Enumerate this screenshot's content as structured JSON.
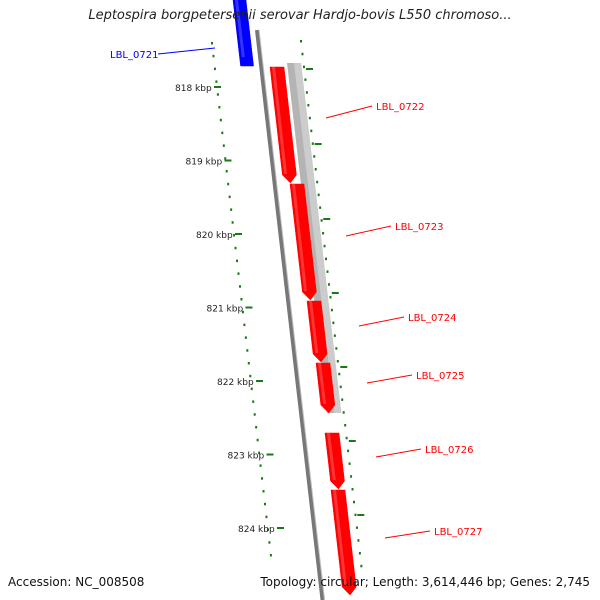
{
  "title": "Leptospira borgpetersenii serovar Hardjo-bovis L550 chromoso...",
  "footer": {
    "accession": "Accession: NC_008508",
    "summary": "Topology: circular; Length: 3,614,446 bp; Genes: 2,745"
  },
  "colors": {
    "forward_gene": "#0000ff",
    "reverse_gene": "#ff0000",
    "gc_track": "#b4b4b4",
    "backbone": "#777777",
    "tick": "#1a7a1a"
  },
  "scale_labels": [
    {
      "kbp": 818,
      "label": "818 kbp"
    },
    {
      "kbp": 819,
      "label": "819 kbp"
    },
    {
      "kbp": 820,
      "label": "820 kbp"
    },
    {
      "kbp": 821,
      "label": "821 kbp"
    },
    {
      "kbp": 822,
      "label": "822 kbp"
    },
    {
      "kbp": 823,
      "label": "823 kbp"
    },
    {
      "kbp": 824,
      "label": "824 kbp"
    }
  ],
  "genes": [
    {
      "name": "LBL_0721",
      "strand": "forward"
    },
    {
      "name": "LBL_0722",
      "strand": "reverse"
    },
    {
      "name": "LBL_0723",
      "strand": "reverse"
    },
    {
      "name": "LBL_0724",
      "strand": "reverse"
    },
    {
      "name": "LBL_0725",
      "strand": "reverse"
    },
    {
      "name": "LBL_0726",
      "strand": "reverse"
    },
    {
      "name": "LBL_0727",
      "strand": "reverse"
    }
  ]
}
